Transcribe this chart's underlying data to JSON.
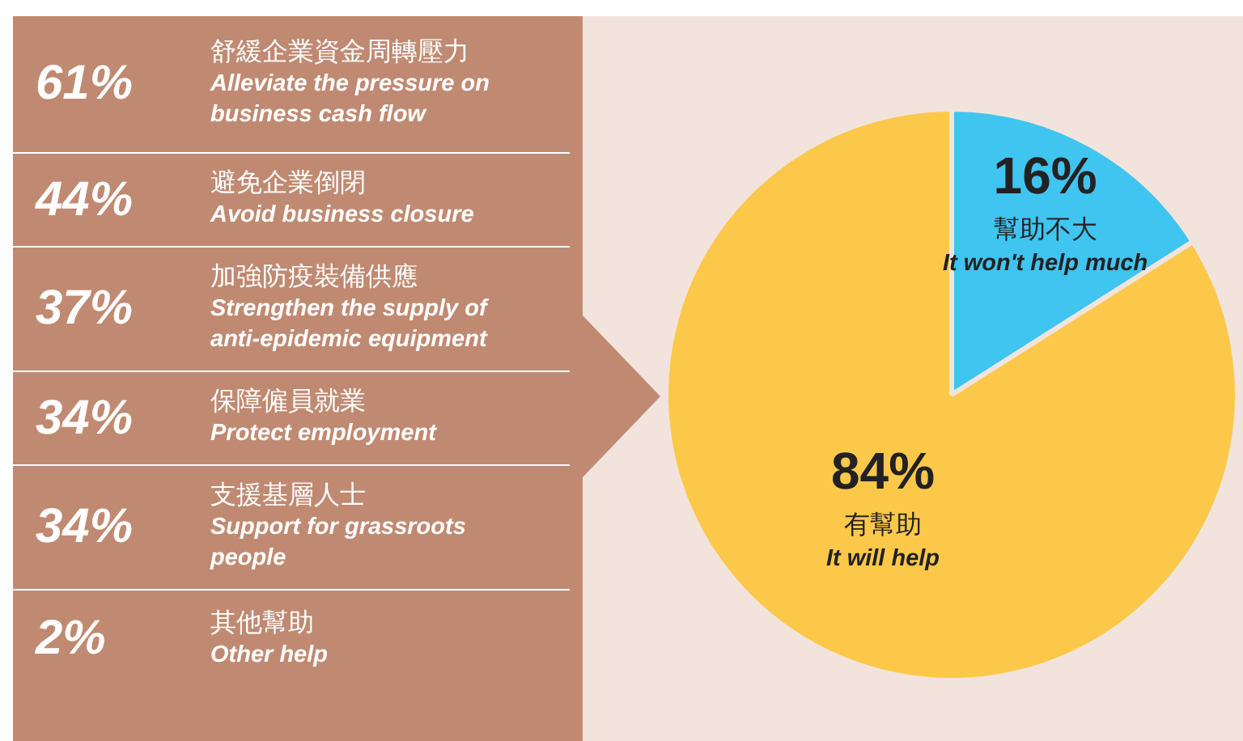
{
  "chart_data": [
    {
      "type": "other",
      "categories": [
        "舒緩企業資金周轉壓力\nAlleviate the pressure on business cash flow",
        "避免企業倒閉\nAvoid business closure",
        "加強防疫裝備供應\nStrengthen the supply of anti-epidemic equipment",
        "保障僱員就業\nProtect employment",
        "支援基層人士\nSupport for grassroots people",
        "其他幫助\nOther help"
      ],
      "values": [
        61,
        44,
        37,
        34,
        34,
        2
      ],
      "value_labels": [
        "61%",
        "44%",
        "37%",
        "34%",
        "34%",
        "2%"
      ],
      "color": "#c08a72"
    },
    {
      "type": "pie",
      "categories": [
        "幫助不大\nIt won't help much",
        "有幫助\nIt will help"
      ],
      "values": [
        16,
        84
      ],
      "value_labels": [
        "16%",
        "84%"
      ],
      "colors": [
        "#40c4f0",
        "#fcc84a"
      ],
      "legend": false
    }
  ]
}
